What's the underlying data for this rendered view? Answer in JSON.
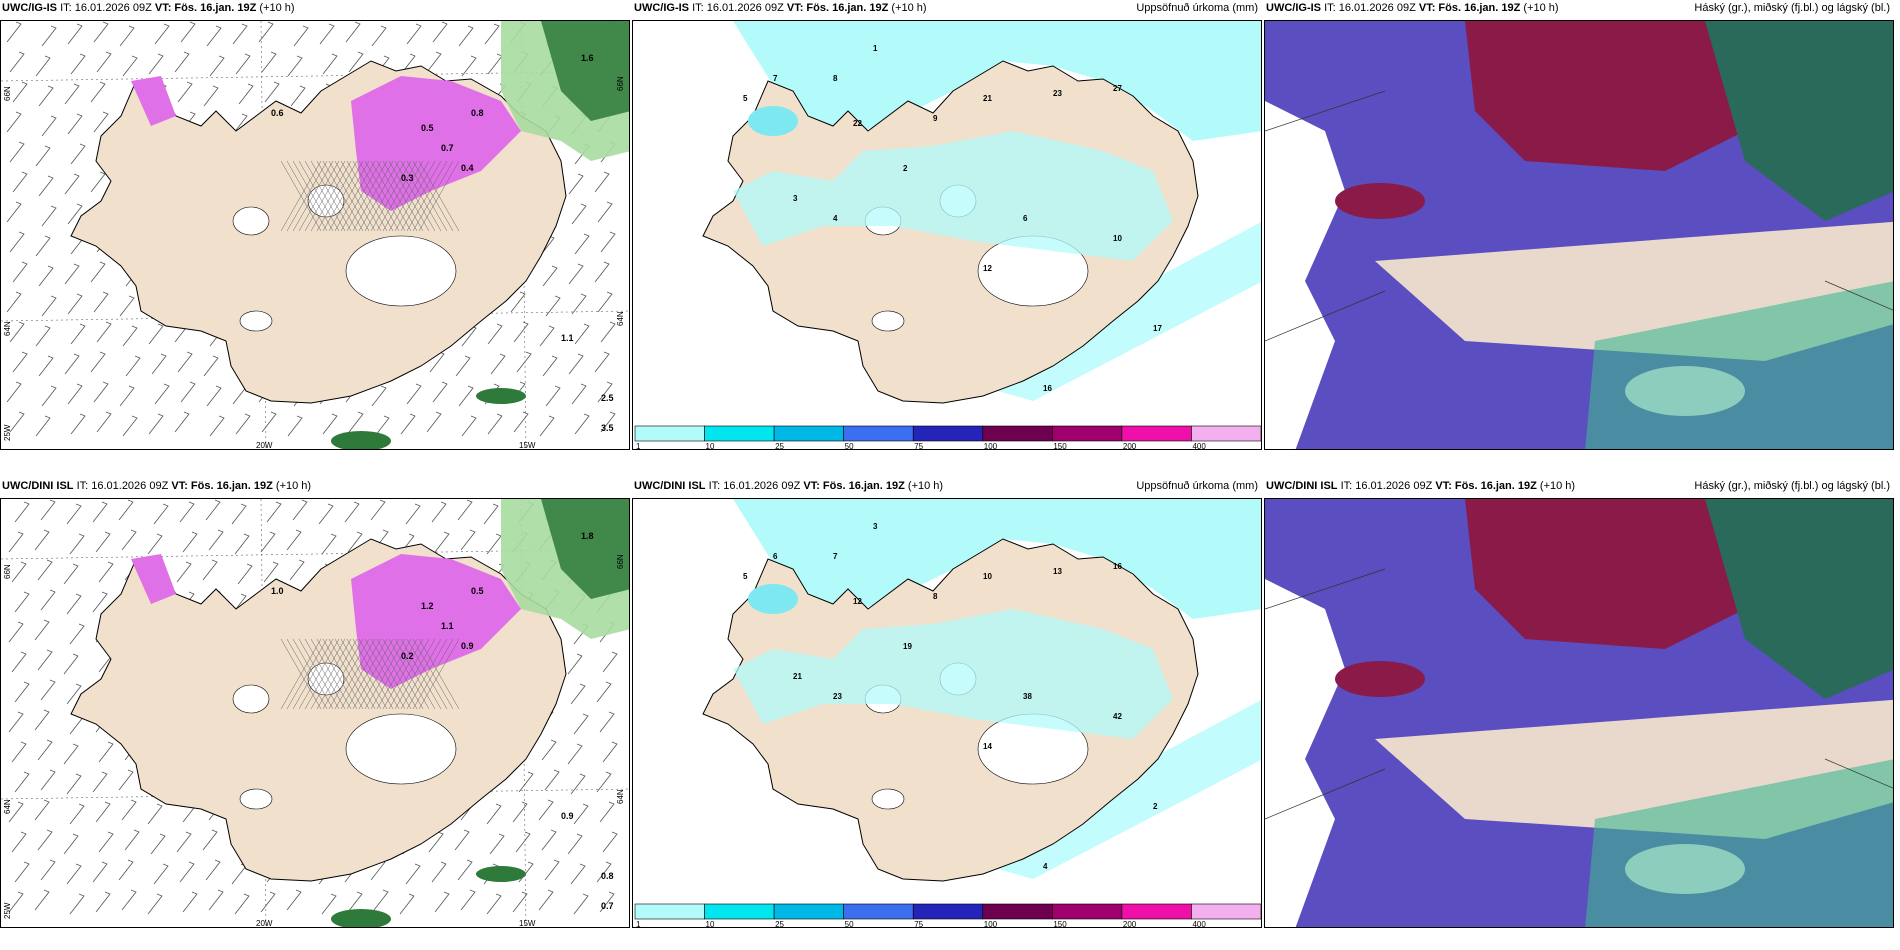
{
  "rows": [
    {
      "model": "UWC/IG-IS",
      "panels": [
        {
          "type": "precip_wind",
          "title_model": "UWC/IG-IS",
          "title_rest": "IT: 16.01.2026 09Z",
          "vt_label": "VT: Fös. 16.jan. 19Z",
          "lead": "(+10 h)",
          "right_title": ""
        },
        {
          "type": "accum_precip",
          "title_model": "UWC/IG-IS",
          "title_rest": "IT: 16.01.2026 09Z",
          "vt_label": "VT: Fös. 16.jan. 19Z",
          "lead": "(+10 h)",
          "right_title": "Uppsöfnuð úrkoma (mm)"
        },
        {
          "type": "clouds",
          "title_model": "UWC/IG-IS",
          "title_rest": "IT: 16.01.2026 09Z",
          "vt_label": "VT: Fös. 16.jan. 19Z",
          "lead": "(+10 h)",
          "right_title": "Háský (gr.), miðský (fj.bl.) og lágský (bl.)"
        }
      ]
    },
    {
      "model": "UWC/DINI ISL",
      "panels": [
        {
          "type": "precip_wind",
          "title_model": "UWC/DINI ISL",
          "title_rest": "IT: 16.01.2026 09Z",
          "vt_label": "VT: Fös. 16.jan. 19Z",
          "lead": "(+10 h)",
          "right_title": ""
        },
        {
          "type": "accum_precip",
          "title_model": "UWC/DINI ISL",
          "title_rest": "IT: 16.01.2026 09Z",
          "vt_label": "VT: Fös. 16.jan. 19Z",
          "lead": "(+10 h)",
          "right_title": "Uppsöfnuð úrkoma (mm)"
        },
        {
          "type": "clouds",
          "title_model": "UWC/DINI ISL",
          "title_rest": "IT: 16.01.2026 09Z",
          "vt_label": "VT: Fös. 16.jan. 19Z",
          "lead": "(+10 h)",
          "right_title": "Háský (gr.), miðský (fj.bl.) og lágský (bl.)"
        }
      ]
    }
  ],
  "axis_labels": {
    "lat66": "66N",
    "lat64": "64N",
    "lon25": "25W",
    "lon20": "20W",
    "lon15": "15W"
  },
  "colorbar": {
    "ticks": [
      "1",
      "10",
      "25",
      "50",
      "75",
      "100",
      "150",
      "200",
      "400"
    ],
    "colors": [
      "#b3fbfb",
      "#00e5ee",
      "#00b8e6",
      "#3b6ff0",
      "#2424b8",
      "#6e0050",
      "#a0006e",
      "#ee10a8",
      "#f4b0ee"
    ]
  },
  "colors": {
    "land": "#f0e0cc",
    "snow": "#ffffff",
    "accum_cyan": "#b3fbfb",
    "accum_cyan2": "#7ee8f0",
    "magenta": "#e070e8",
    "green_dark": "#2e7a3a",
    "green_light": "#a8dca0",
    "cloud_purple": "#5a4ec0",
    "cloud_maroon": "#8a1a48",
    "cloud_teal": "#2a6a5a"
  },
  "map_values": {
    "row0_accum": [
      "1",
      "5",
      "7",
      "8",
      "9",
      "21",
      "22",
      "23",
      "27",
      "2",
      "3",
      "4",
      "6",
      "10",
      "12",
      "16",
      "17"
    ],
    "row1_accum": [
      "3",
      "5",
      "6",
      "7",
      "8",
      "10",
      "12",
      "13",
      "16",
      "19",
      "21",
      "23",
      "38",
      "42",
      "14",
      "4",
      "2"
    ],
    "row0_wind": [
      "0.6",
      "1.1",
      "2.5",
      "3.5",
      "0.5",
      "0.7",
      "0.8",
      "0.3",
      "1.6",
      "0.4"
    ],
    "row1_wind": [
      "1.0",
      "0.9",
      "0.8",
      "0.7",
      "1.2",
      "1.1",
      "0.5",
      "0.2",
      "1.8",
      "0.9"
    ]
  }
}
